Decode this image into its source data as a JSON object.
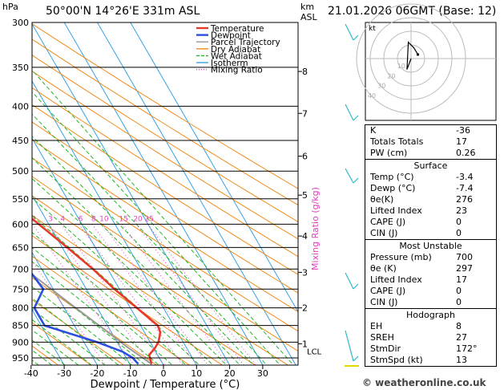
{
  "header": {
    "station": "50°00'N  14°26'E  331m  ASL",
    "datetime": "21.01.2026  06GMT  (Base: 12)",
    "unit_pressure": "hPa",
    "unit_height_1": "km",
    "unit_height_2": "ASL"
  },
  "chart_data": {
    "type": "skew-t log-p",
    "xlabel": "Dewpoint / Temperature (°C)",
    "mixing_ratio_label": "Mixing Ratio (g/kg)",
    "x_ticks": [
      -40,
      -30,
      -20,
      -10,
      0,
      10,
      20,
      30
    ],
    "pressure_ticks": [
      300,
      350,
      400,
      450,
      500,
      550,
      600,
      650,
      700,
      750,
      800,
      850,
      900,
      950
    ],
    "km_ticks": [
      {
        "p": 355,
        "label": "8"
      },
      {
        "p": 410,
        "label": "7"
      },
      {
        "p": 475,
        "label": "6"
      },
      {
        "p": 543,
        "label": "5"
      },
      {
        "p": 625,
        "label": "4"
      },
      {
        "p": 708,
        "label": "3"
      },
      {
        "p": 800,
        "label": "2"
      },
      {
        "p": 905,
        "label": "1"
      }
    ],
    "lcl_label": "LCL",
    "lcl_pressure": 915,
    "mixing_ratio_values": [
      "1",
      "2",
      "3",
      "4",
      "6",
      "8",
      "10",
      "15",
      "20",
      "25"
    ],
    "legend": [
      {
        "name": "Temperature",
        "color": "#e83a2a"
      },
      {
        "name": "Dewpoint",
        "color": "#2d4fe0"
      },
      {
        "name": "Parcel Trajectory",
        "color": "#9a9a9a"
      },
      {
        "name": "Dry Adiabat",
        "color": "#f08c1a"
      },
      {
        "name": "Wet Adiabat",
        "color": "#22b822"
      },
      {
        "name": "Isotherm",
        "color": "#36a3e6"
      },
      {
        "name": "Mixing Ratio",
        "color": "#e23fbf"
      }
    ],
    "temperature": [
      {
        "p": 970,
        "t": -3.4
      },
      {
        "p": 940,
        "t": -2.5
      },
      {
        "p": 920,
        "t": 0.2
      },
      {
        "p": 900,
        "t": 2.5
      },
      {
        "p": 870,
        "t": 4.8
      },
      {
        "p": 850,
        "t": 5.2
      },
      {
        "p": 800,
        "t": 2.0
      },
      {
        "p": 750,
        "t": -1.5
      },
      {
        "p": 700,
        "t": -4.5
      },
      {
        "p": 650,
        "t": -8.5
      },
      {
        "p": 600,
        "t": -13.0
      },
      {
        "p": 550,
        "t": -18.0
      },
      {
        "p": 500,
        "t": -23.5
      },
      {
        "p": 450,
        "t": -29.5
      },
      {
        "p": 400,
        "t": -36.5
      },
      {
        "p": 350,
        "t": -44.0
      },
      {
        "p": 300,
        "t": -52.0
      }
    ],
    "dewpoint": [
      {
        "p": 970,
        "t": -7.4
      },
      {
        "p": 950,
        "t": -8.0
      },
      {
        "p": 930,
        "t": -10.0
      },
      {
        "p": 900,
        "t": -16.0
      },
      {
        "p": 850,
        "t": -29.0
      },
      {
        "p": 800,
        "t": -29.0
      },
      {
        "p": 750,
        "t": -23.0
      },
      {
        "p": 700,
        "t": -24.0
      },
      {
        "p": 650,
        "t": -25.5
      },
      {
        "p": 600,
        "t": -23.0
      },
      {
        "p": 550,
        "t": -33.0
      },
      {
        "p": 500,
        "t": -28.5
      },
      {
        "p": 450,
        "t": -31.5
      },
      {
        "p": 400,
        "t": -40.0
      },
      {
        "p": 350,
        "t": -48.0
      },
      {
        "p": 300,
        "t": -57.0
      }
    ],
    "parcel": [
      {
        "p": 970,
        "t": -3.4
      },
      {
        "p": 915,
        "t": -7.8
      },
      {
        "p": 850,
        "t": -12.5
      },
      {
        "p": 800,
        "t": -16.5
      },
      {
        "p": 700,
        "t": -25.0
      },
      {
        "p": 600,
        "t": -34.0
      },
      {
        "p": 500,
        "t": -44.0
      },
      {
        "p": 400,
        "t": -56.5
      },
      {
        "p": 300,
        "t": -71.5
      }
    ]
  },
  "hodograph": {
    "label": "kt",
    "ring_labels": [
      "10",
      "20",
      "30",
      "40"
    ],
    "trace": [
      [
        0,
        0
      ],
      [
        -3,
        -8
      ],
      [
        -2,
        12
      ],
      [
        2,
        8
      ],
      [
        5,
        3
      ]
    ]
  },
  "indices": {
    "top": [
      {
        "k": "K",
        "v": "-36"
      },
      {
        "k": "Totals Totals",
        "v": "17"
      },
      {
        "k": "PW (cm)",
        "v": "0.26"
      }
    ],
    "surface": {
      "title": "Surface",
      "rows": [
        {
          "k": "Temp (°C)",
          "v": "-3.4"
        },
        {
          "k": "Dewp (°C)",
          "v": "-7.4"
        },
        {
          "k": "θe(K)",
          "v": "276"
        },
        {
          "k": "Lifted Index",
          "v": "23"
        },
        {
          "k": "CAPE (J)",
          "v": "0"
        },
        {
          "k": "CIN (J)",
          "v": "0"
        }
      ]
    },
    "most_unstable": {
      "title": "Most Unstable",
      "rows": [
        {
          "k": "Pressure (mb)",
          "v": "700"
        },
        {
          "k": "θe (K)",
          "v": "297"
        },
        {
          "k": "Lifted Index",
          "v": "17"
        },
        {
          "k": "CAPE (J)",
          "v": "0"
        },
        {
          "k": "CIN (J)",
          "v": "0"
        }
      ]
    },
    "hodograph": {
      "title": "Hodograph",
      "rows": [
        {
          "k": "EH",
          "v": "8"
        },
        {
          "k": "SREH",
          "v": "27"
        },
        {
          "k": "StmDir",
          "v": "172°"
        },
        {
          "k": "StmSpd (kt)",
          "v": "13"
        }
      ]
    }
  },
  "copyright": "© weatheronline.co.uk"
}
